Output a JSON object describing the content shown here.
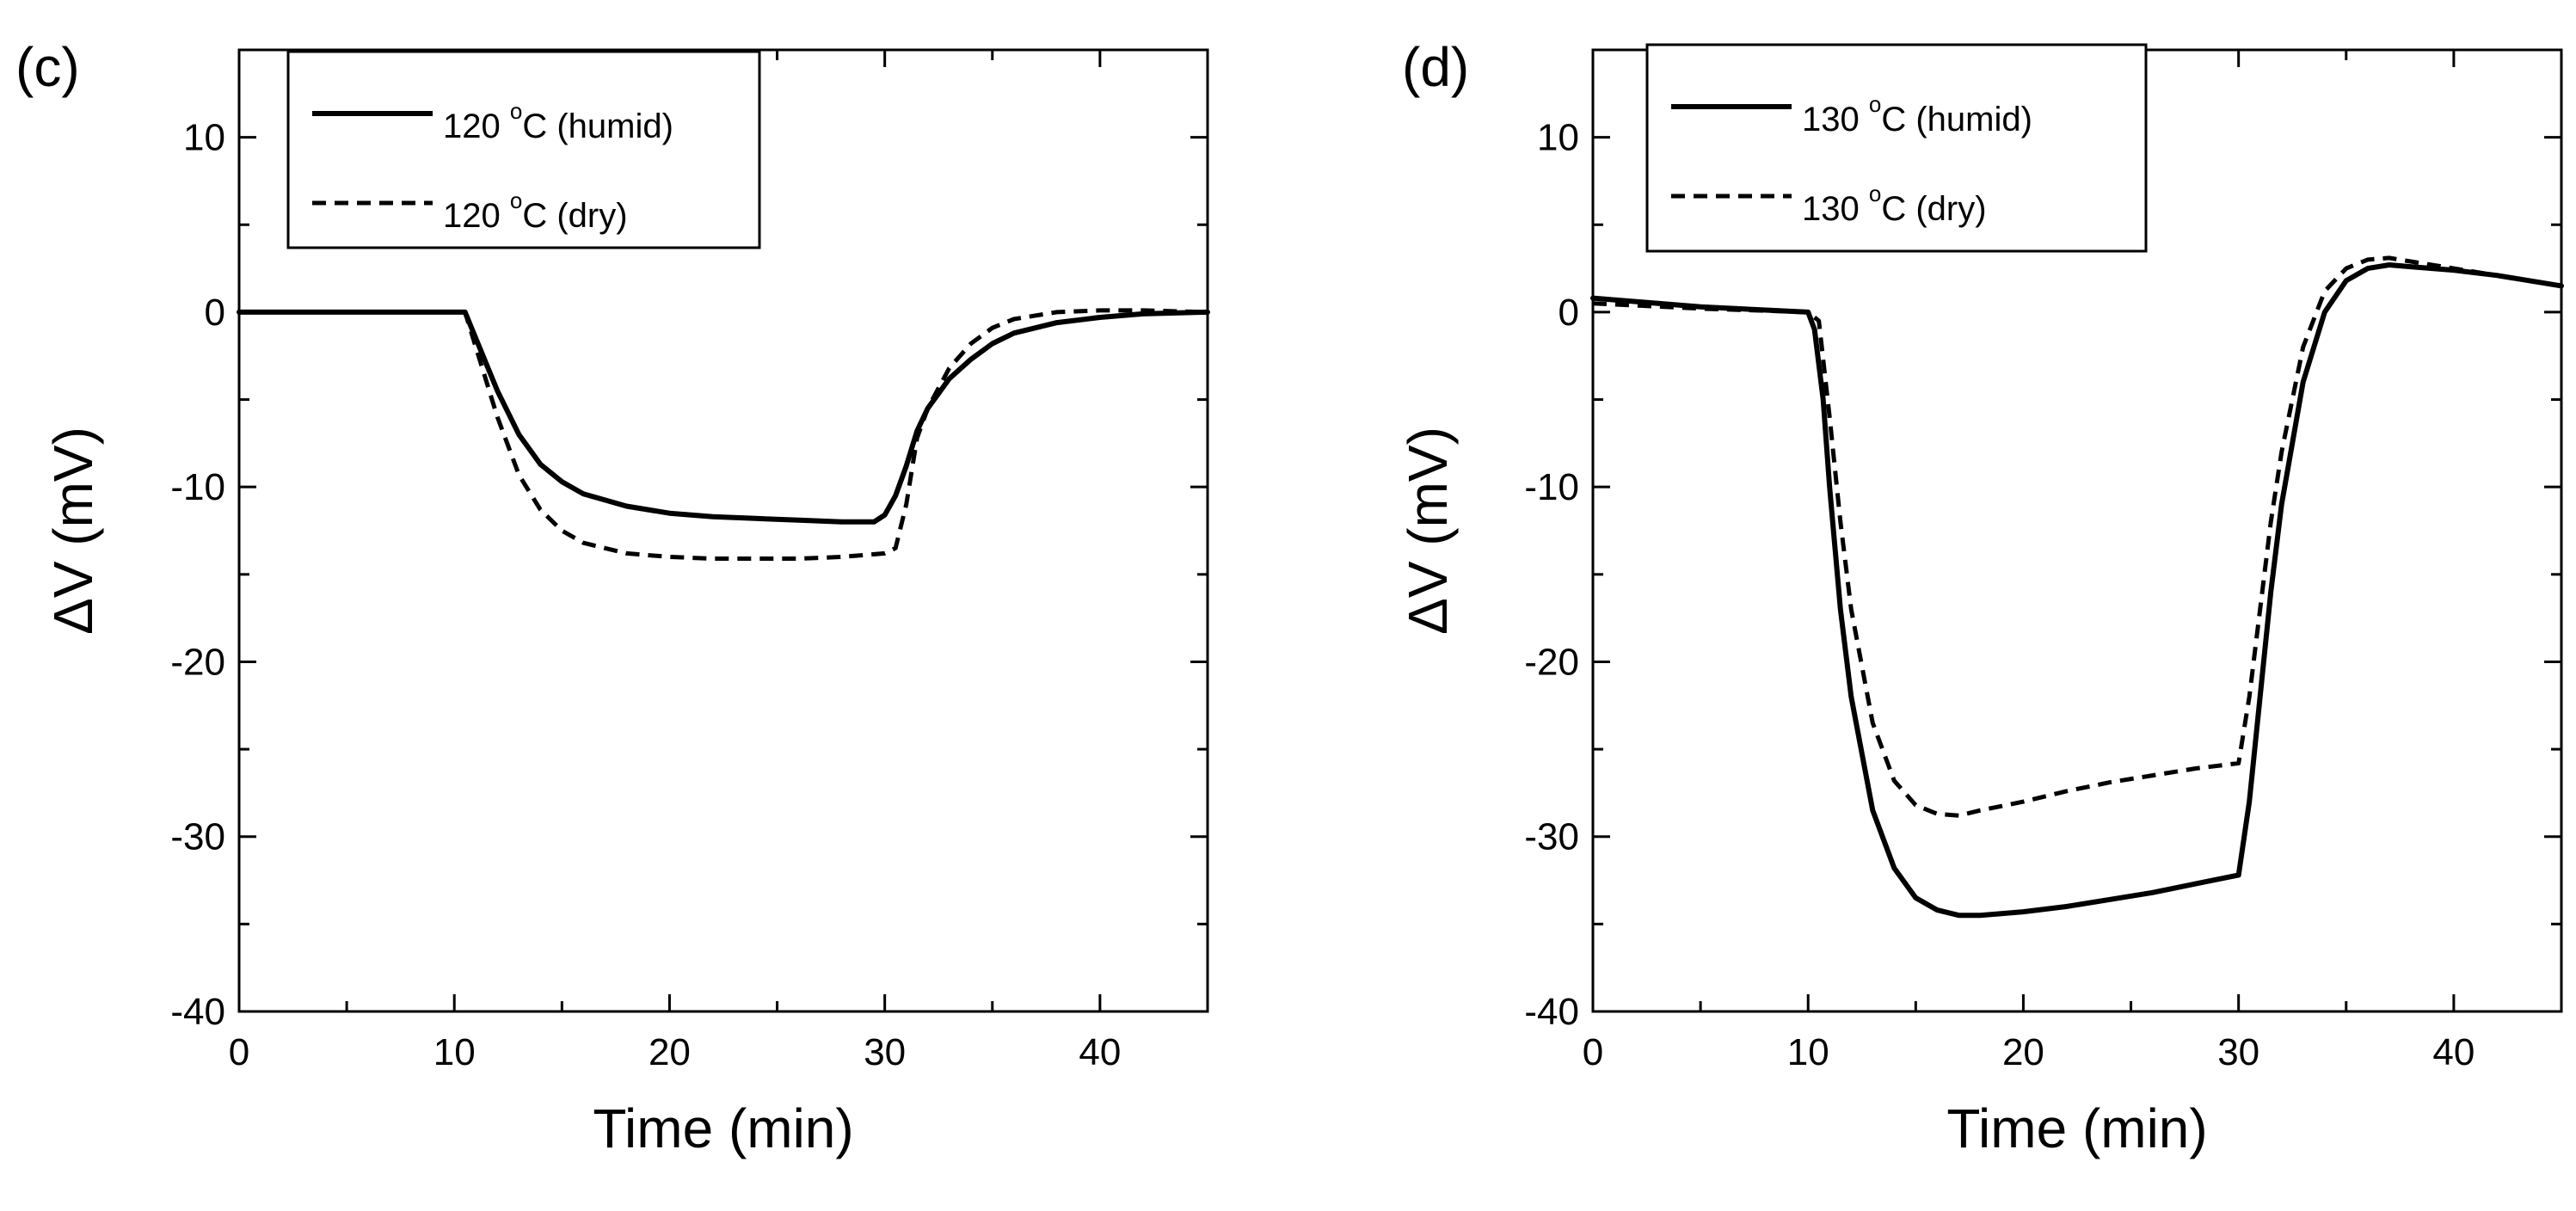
{
  "chart_data": [
    {
      "type": "line",
      "panel_label": "(c)",
      "xlabel": "Time (min)",
      "ylabel": "ΔV (mV)",
      "xlim": [
        0,
        45
      ],
      "ylim": [
        -40,
        15
      ],
      "xticks": [
        0,
        10,
        20,
        30,
        40
      ],
      "yticks": [
        10,
        0,
        -10,
        -20,
        -30,
        -40
      ],
      "grid": false,
      "legend_position": "top-left",
      "series": [
        {
          "name": "120 °C (humid)",
          "legend_main": "120 ",
          "legend_sup": "o",
          "legend_rest": "C (humid)",
          "style": "solid",
          "x": [
            0,
            5,
            10,
            10.5,
            11,
            12,
            13,
            14,
            15,
            16,
            18,
            20,
            22,
            24,
            26,
            28,
            29.5,
            30,
            30.5,
            31,
            31.5,
            32,
            33,
            34,
            35,
            36,
            38,
            40,
            42,
            45
          ],
          "y": [
            0,
            0,
            0,
            0,
            -1.5,
            -4.5,
            -7,
            -8.7,
            -9.7,
            -10.4,
            -11.1,
            -11.5,
            -11.7,
            -11.8,
            -11.9,
            -12,
            -12,
            -11.6,
            -10.5,
            -8.8,
            -6.8,
            -5.5,
            -3.8,
            -2.7,
            -1.8,
            -1.2,
            -0.6,
            -0.3,
            -0.1,
            0
          ]
        },
        {
          "name": "120 °C (dry)",
          "legend_main": "120 ",
          "legend_sup": "o",
          "legend_rest": "C (dry)",
          "style": "dashed",
          "x": [
            0,
            5,
            10,
            10.5,
            11,
            12,
            13,
            14,
            15,
            16,
            18,
            20,
            22,
            24,
            26,
            28,
            30,
            30.5,
            31,
            31.5,
            32,
            33,
            34,
            35,
            36,
            38,
            40,
            42,
            45
          ],
          "y": [
            0,
            0,
            0,
            0,
            -2,
            -6,
            -9.3,
            -11.3,
            -12.5,
            -13.2,
            -13.8,
            -14,
            -14.1,
            -14.1,
            -14.1,
            -14,
            -13.8,
            -13.5,
            -11,
            -7.2,
            -5.5,
            -3.2,
            -1.8,
            -0.9,
            -0.4,
            0,
            0.1,
            0.1,
            0
          ]
        }
      ]
    },
    {
      "type": "line",
      "panel_label": "(d)",
      "xlabel": "Time (min)",
      "ylabel": "ΔV (mV)",
      "xlim": [
        0,
        45
      ],
      "ylim": [
        -40,
        15
      ],
      "xticks": [
        0,
        10,
        20,
        30,
        40
      ],
      "yticks": [
        10,
        0,
        -10,
        -20,
        -30,
        -40
      ],
      "grid": false,
      "legend_position": "top-left",
      "series": [
        {
          "name": "130 °C (humid)",
          "legend_main": "130 ",
          "legend_sup": "o",
          "legend_rest": "C (humid)",
          "style": "solid",
          "x": [
            0,
            5,
            10,
            10.3,
            10.7,
            11,
            11.5,
            12,
            13,
            14,
            15,
            16,
            17,
            18,
            20,
            22,
            24,
            26,
            28,
            30,
            30.5,
            31,
            31.5,
            32,
            33,
            34,
            35,
            36,
            37,
            38,
            40,
            42,
            45
          ],
          "y": [
            0.8,
            0.3,
            0,
            -1,
            -5,
            -10,
            -17,
            -22,
            -28.5,
            -31.8,
            -33.5,
            -34.2,
            -34.5,
            -34.5,
            -34.3,
            -34,
            -33.6,
            -33.2,
            -32.7,
            -32.2,
            -28,
            -22,
            -16,
            -11,
            -4,
            0,
            1.8,
            2.5,
            2.7,
            2.6,
            2.4,
            2.1,
            1.5
          ]
        },
        {
          "name": "130 °C (dry)",
          "legend_main": "130 ",
          "legend_sup": "o",
          "legend_rest": "C (dry)",
          "style": "dashed",
          "x": [
            0,
            5,
            10,
            10.5,
            11,
            11.5,
            12,
            13,
            14,
            15,
            16,
            17,
            18,
            20,
            22,
            24,
            26,
            28,
            30,
            30.5,
            31,
            31.5,
            32,
            33,
            34,
            35,
            36,
            37,
            38,
            40,
            42,
            45
          ],
          "y": [
            0.5,
            0.2,
            0,
            -0.5,
            -6,
            -12,
            -17,
            -23.5,
            -26.8,
            -28.2,
            -28.7,
            -28.8,
            -28.5,
            -28,
            -27.4,
            -26.9,
            -26.5,
            -26.1,
            -25.8,
            -22,
            -17,
            -12,
            -8,
            -2,
            1.2,
            2.5,
            3,
            3.1,
            2.9,
            2.5,
            2.1,
            1.5
          ]
        }
      ]
    }
  ]
}
